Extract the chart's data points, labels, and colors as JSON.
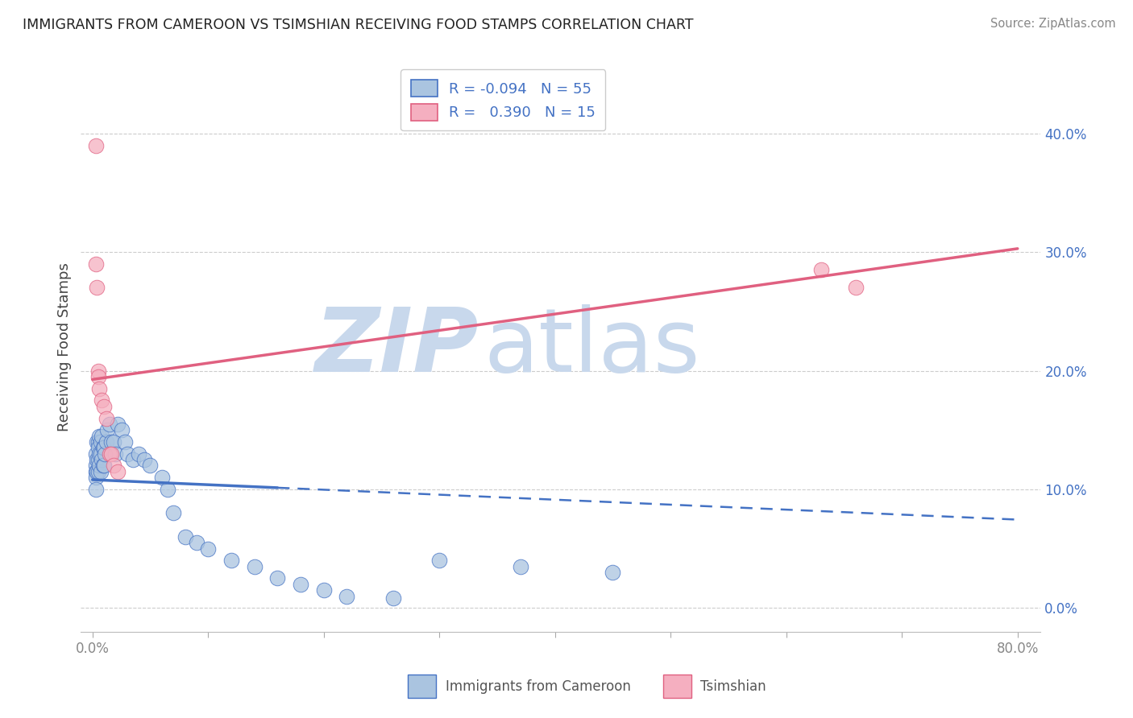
{
  "title": "IMMIGRANTS FROM CAMEROON VS TSIMSHIAN RECEIVING FOOD STAMPS CORRELATION CHART",
  "source": "Source: ZipAtlas.com",
  "ylabel": "Receiving Food Stamps",
  "legend_label1": "Immigrants from Cameroon",
  "legend_label2": "Tsimshian",
  "R1": -0.094,
  "N1": 55,
  "R2": 0.39,
  "N2": 15,
  "color1": "#aac4e0",
  "color2": "#f5afc0",
  "line_color1": "#4472c4",
  "line_color2": "#e06080",
  "xlim": [
    -0.01,
    0.82
  ],
  "ylim": [
    -0.02,
    0.46
  ],
  "xticks": [
    0.0,
    0.1,
    0.2,
    0.3,
    0.4,
    0.5,
    0.6,
    0.7,
    0.8
  ],
  "yticks_right": [
    0.0,
    0.1,
    0.2,
    0.3,
    0.4
  ],
  "ytick_labels_right": [
    "0.0%",
    "10.0%",
    "20.0%",
    "30.0%",
    "40.0%"
  ],
  "background_color": "#ffffff",
  "watermark_text1": "ZIP",
  "watermark_text2": "atlas",
  "watermark_color": "#c8d8ec",
  "blue_scatter_x": [
    0.003,
    0.003,
    0.003,
    0.003,
    0.003,
    0.004,
    0.004,
    0.004,
    0.005,
    0.005,
    0.005,
    0.005,
    0.006,
    0.006,
    0.006,
    0.007,
    0.007,
    0.007,
    0.008,
    0.008,
    0.009,
    0.009,
    0.01,
    0.01,
    0.011,
    0.012,
    0.013,
    0.015,
    0.016,
    0.018,
    0.02,
    0.022,
    0.025,
    0.028,
    0.03,
    0.035,
    0.04,
    0.045,
    0.05,
    0.06,
    0.065,
    0.07,
    0.08,
    0.09,
    0.1,
    0.12,
    0.14,
    0.16,
    0.18,
    0.2,
    0.22,
    0.26,
    0.3,
    0.37,
    0.45
  ],
  "blue_scatter_y": [
    0.13,
    0.12,
    0.115,
    0.11,
    0.1,
    0.14,
    0.125,
    0.115,
    0.14,
    0.135,
    0.125,
    0.115,
    0.145,
    0.13,
    0.12,
    0.14,
    0.13,
    0.115,
    0.145,
    0.125,
    0.135,
    0.12,
    0.135,
    0.12,
    0.13,
    0.14,
    0.15,
    0.155,
    0.14,
    0.14,
    0.13,
    0.155,
    0.15,
    0.14,
    0.13,
    0.125,
    0.13,
    0.125,
    0.12,
    0.11,
    0.1,
    0.08,
    0.06,
    0.055,
    0.05,
    0.04,
    0.035,
    0.025,
    0.02,
    0.015,
    0.01,
    0.008,
    0.04,
    0.035,
    0.03
  ],
  "pink_scatter_x": [
    0.003,
    0.003,
    0.004,
    0.005,
    0.005,
    0.006,
    0.008,
    0.01,
    0.012,
    0.015,
    0.016,
    0.018,
    0.022,
    0.63,
    0.66
  ],
  "pink_scatter_y": [
    0.39,
    0.29,
    0.27,
    0.2,
    0.195,
    0.185,
    0.175,
    0.17,
    0.16,
    0.13,
    0.13,
    0.12,
    0.115,
    0.285,
    0.27
  ],
  "blue_line_solid_end": 0.16,
  "blue_line_x0": 0.0,
  "blue_line_x1": 0.8,
  "pink_line_x0": 0.0,
  "pink_line_x1": 0.8
}
